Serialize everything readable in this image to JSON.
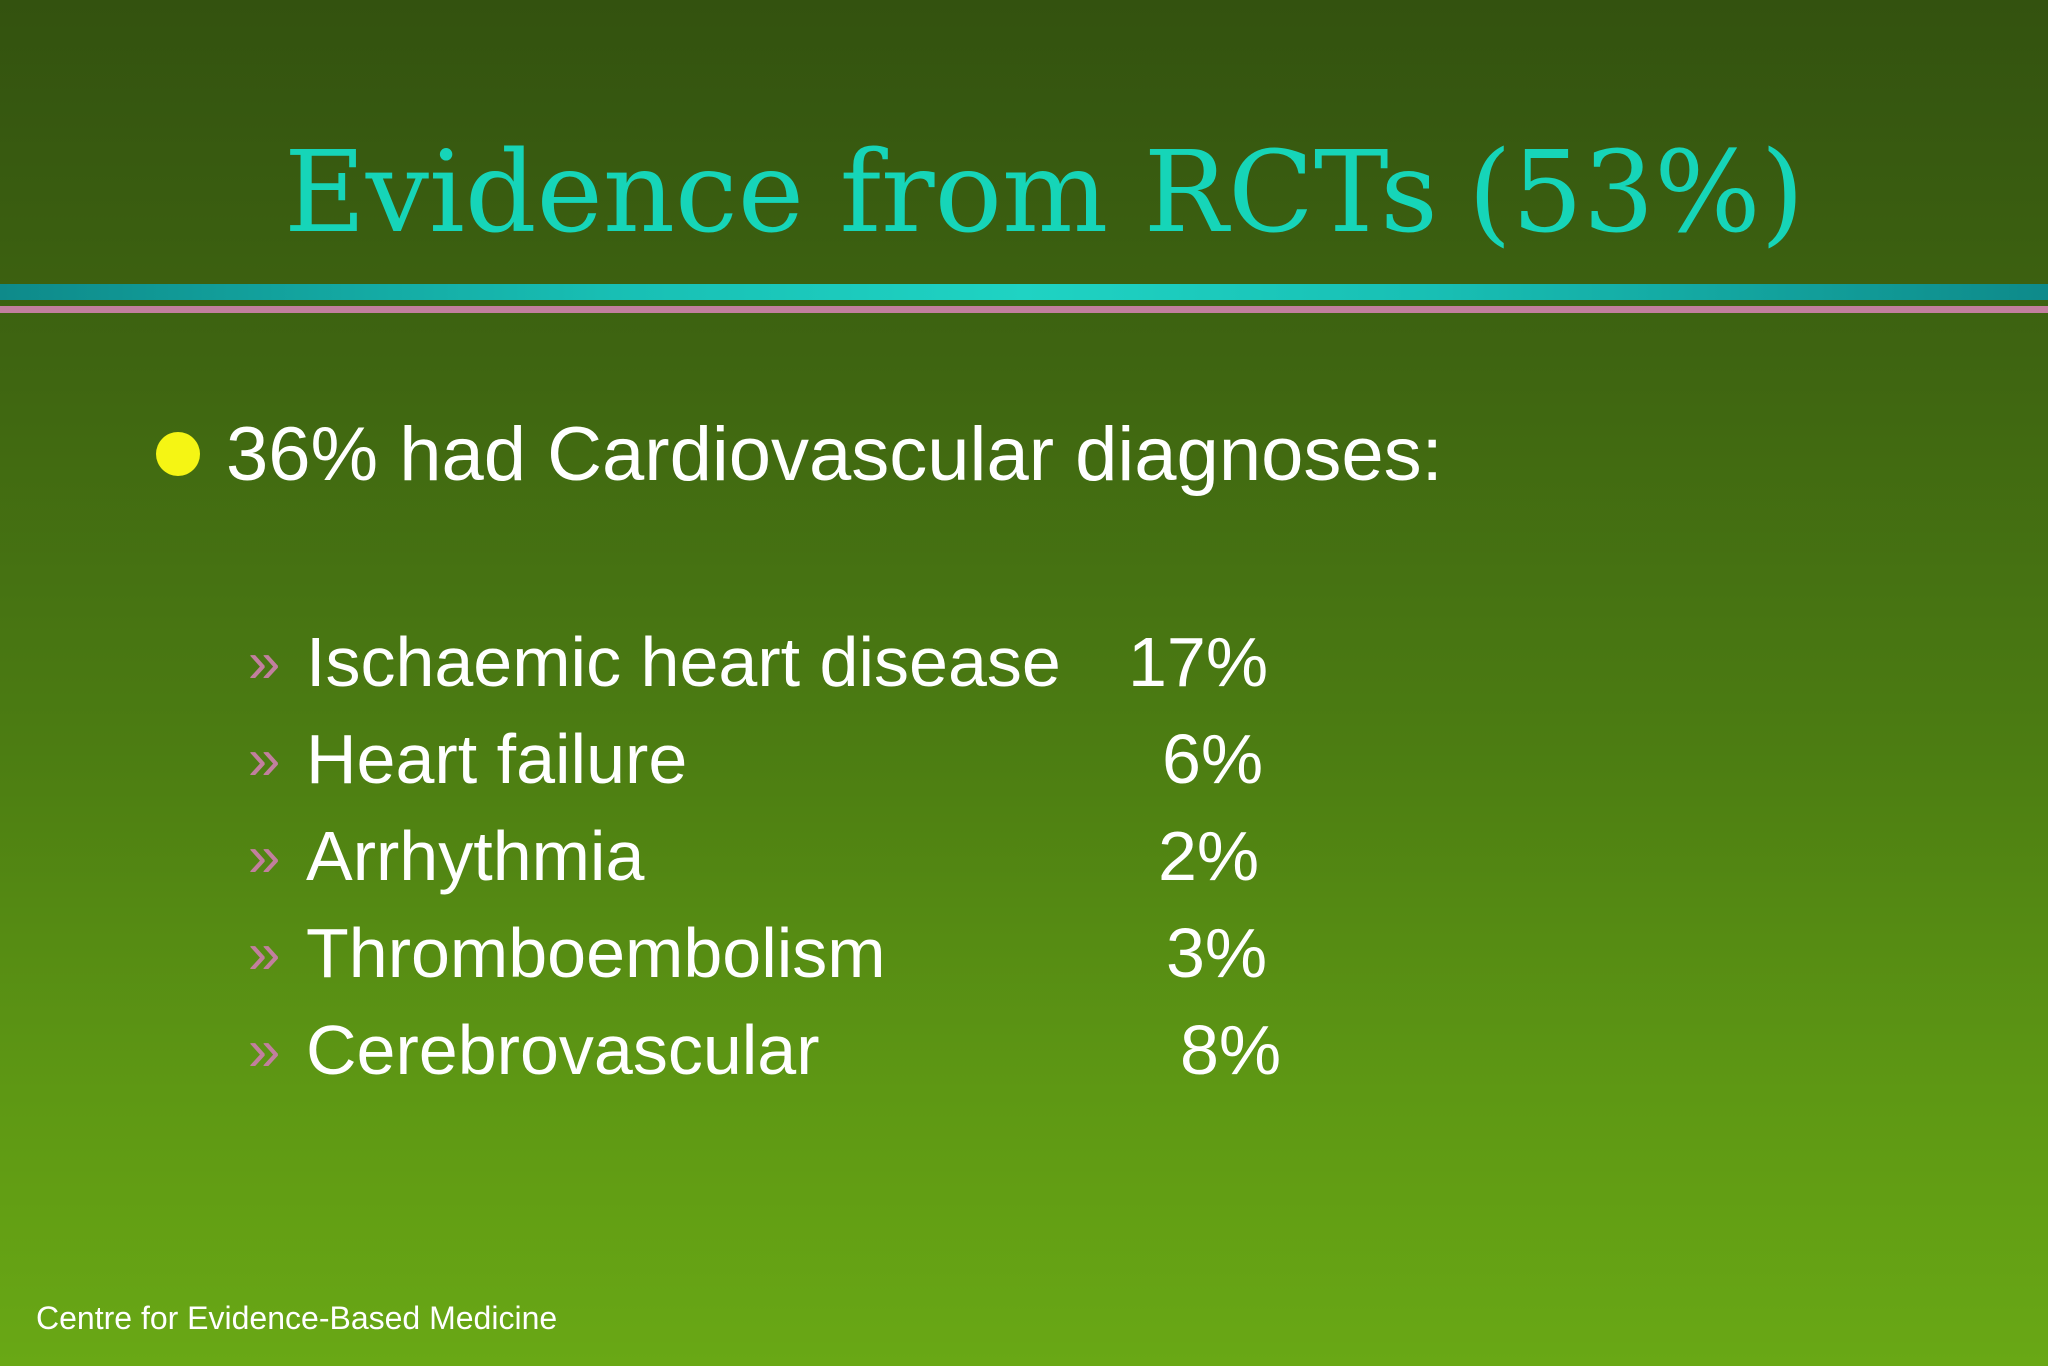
{
  "title": {
    "main": "Evidence from RCTs",
    "percentage": "(53%)"
  },
  "bullet": {
    "text": "36% had Cardiovascular diagnoses:"
  },
  "sub_items": [
    {
      "marker": "»",
      "label": "Ischaemic heart disease",
      "value": "17%"
    },
    {
      "marker": "»",
      "label": "Heart failure",
      "value": "6%"
    },
    {
      "marker": "»",
      "label": "Arrhythmia",
      "value": "2%"
    },
    {
      "marker": "»",
      "label": "Thromboembolism",
      "value": "3%"
    },
    {
      "marker": "»",
      "label": "Cerebrovascular",
      "value": "8%"
    }
  ],
  "footer": {
    "text": "Centre for Evidence-Based Medicine"
  },
  "colors": {
    "title": "#16d5b8",
    "bullet_dot": "#f5f514",
    "sub_marker": "#c27f9e",
    "divider_teal": "#1fd3c3",
    "divider_pink": "#c27f9e",
    "background_top": "#33520f",
    "background_bottom": "#69a815"
  }
}
